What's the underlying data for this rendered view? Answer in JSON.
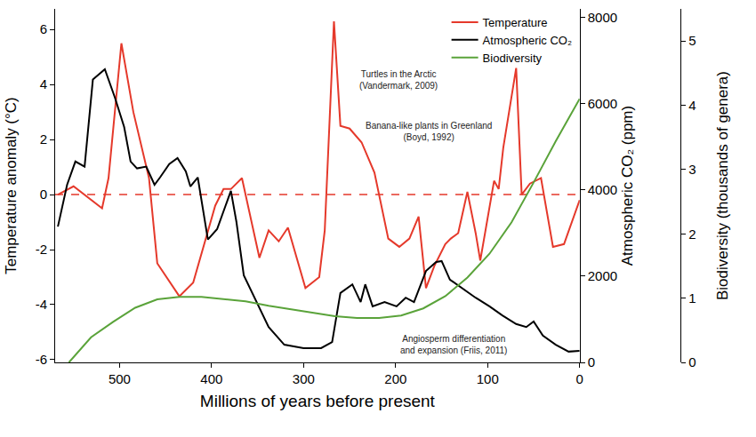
{
  "chart_data": {
    "type": "line",
    "xlabel": "Millions of years before present",
    "ylabel": "Temperature anomaly (°C)",
    "y2label": "Atmospheric CO₂ (ppm)",
    "y3label": "Biodiversity (thousands of genera)",
    "xlim": [
      570,
      0
    ],
    "xticks": [
      500,
      400,
      300,
      200,
      100,
      0
    ],
    "ylim": [
      -6.1,
      6.75
    ],
    "yticks": [
      -6,
      -4,
      -2,
      0,
      2,
      4,
      6
    ],
    "y2lim": [
      0,
      8200
    ],
    "y2ticks": [
      0,
      2000,
      4000,
      6000,
      8000
    ],
    "y3lim": [
      0,
      5.5
    ],
    "y3ticks": [
      0,
      1,
      2,
      3,
      4,
      5
    ],
    "grid": false,
    "legend": "upper right",
    "reference_line": {
      "value": 0,
      "axis": "y",
      "color": "#e5392b",
      "line_style": "dash"
    },
    "series": [
      {
        "name": "Temperature",
        "color": "#e5392b",
        "axis": "y",
        "x": [
          567,
          550,
          519,
          512,
          498,
          485,
          468,
          459,
          435,
          420,
          396,
          387,
          379,
          367,
          348,
          338,
          327,
          317,
          298,
          283,
          277,
          267,
          260,
          250,
          237,
          223,
          208,
          196,
          185,
          175,
          167,
          158,
          146,
          140,
          132,
          122,
          113,
          108,
          93,
          88,
          83,
          69,
          63,
          54,
          42,
          29,
          17,
          0
        ],
        "values": [
          0.0,
          0.3,
          -0.5,
          0.6,
          5.5,
          3.0,
          0.6,
          -2.5,
          -3.7,
          -3.2,
          -0.4,
          0.2,
          0.2,
          0.6,
          -2.3,
          -1.3,
          -1.7,
          -1.2,
          -3.4,
          -3.0,
          -1.3,
          6.3,
          2.5,
          2.4,
          1.9,
          0.8,
          -1.6,
          -1.9,
          -1.6,
          -0.8,
          -3.4,
          -2.6,
          -1.8,
          -1.6,
          -1.4,
          0.1,
          -1.4,
          -2.4,
          0.5,
          0.2,
          1.7,
          4.6,
          0.0,
          0.4,
          0.6,
          -1.9,
          -1.8,
          -0.2
        ]
      },
      {
        "name": "Atmospheric CO₂",
        "color": "#000000",
        "axis": "y2",
        "x": [
          567,
          557,
          548,
          538,
          529,
          516,
          505,
          495,
          488,
          481,
          471,
          462,
          456,
          446,
          437,
          428,
          423,
          415,
          404,
          394,
          379,
          373,
          365,
          353,
          338,
          321,
          300,
          281,
          269,
          260,
          247,
          238,
          233,
          225,
          212,
          199,
          189,
          180,
          167,
          156,
          150,
          141,
          127,
          113,
          98,
          84,
          69,
          58,
          50,
          40,
          26,
          12,
          0
        ],
        "values": [
          3150,
          4120,
          4660,
          4540,
          6560,
          6800,
          6140,
          5460,
          4660,
          4500,
          4540,
          4120,
          4290,
          4600,
          4740,
          4430,
          4080,
          4290,
          2850,
          3090,
          3980,
          3260,
          2020,
          1500,
          820,
          410,
          330,
          330,
          470,
          1610,
          1810,
          1400,
          1810,
          1300,
          1400,
          1300,
          1500,
          1400,
          2120,
          2330,
          2350,
          1920,
          1710,
          1500,
          1300,
          1090,
          890,
          820,
          950,
          620,
          410,
          250,
          270
        ]
      },
      {
        "name": "Biodiversity",
        "color": "#5aa33a",
        "axis": "y3",
        "x": [
          555,
          531,
          507,
          483,
          459,
          435,
          411,
          387,
          363,
          338,
          314,
          290,
          266,
          242,
          218,
          194,
          170,
          146,
          122,
          98,
          74,
          50,
          26,
          0
        ],
        "values": [
          0.0,
          0.39,
          0.63,
          0.85,
          0.98,
          1.02,
          1.02,
          0.99,
          0.95,
          0.88,
          0.83,
          0.77,
          0.72,
          0.69,
          0.69,
          0.73,
          0.84,
          1.03,
          1.32,
          1.69,
          2.18,
          2.8,
          3.44,
          4.1
        ]
      }
    ],
    "annotations": [
      {
        "lines": [
          "Turtles in the Arctic",
          "(Vandermark, 2009)"
        ]
      },
      {
        "lines": [
          "Banana-like plants in Greenland",
          "(Boyd, 1992)"
        ]
      },
      {
        "lines": [
          "Angiosperm differentiation",
          "and expansion (Friis, 2011)"
        ]
      }
    ]
  }
}
